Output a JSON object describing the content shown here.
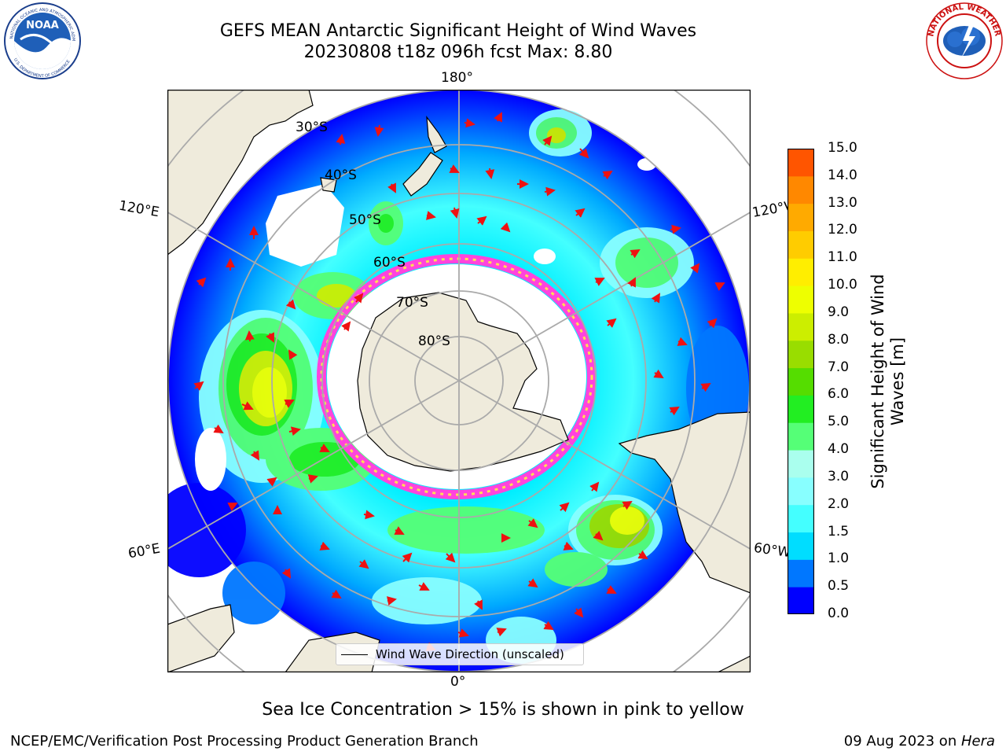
{
  "title": {
    "line1": "GEFS MEAN Antarctic Significant Height of Wind Waves",
    "line2": "20230808 t18z 096h fcst   Max: 8.80"
  },
  "logos": {
    "left": {
      "name": "NOAA",
      "ring_text": "NATIONAL OCEANIC AND ATMOSPHERIC ADMINISTRATION · U.S. DEPARTMENT OF COMMERCE"
    },
    "right": {
      "name": "NATIONAL WEATHER SERVICE"
    }
  },
  "map": {
    "projection": "south-polar-stereographic",
    "longitude_labels": {
      "top": "180°",
      "bottom": "0°",
      "left_upper": "120°E",
      "left_lower": "60°E",
      "right_upper": "120°W",
      "right_lower": "60°W"
    },
    "latitude_labels": [
      "30°S",
      "40°S",
      "50°S",
      "60°S",
      "70°S",
      "80°S"
    ],
    "legend_label": "Wind Wave Direction (unscaled)",
    "max_value": 8.8,
    "colors": {
      "land": "#efebdc",
      "ocean_low": "#0000ff",
      "arrow": "#ee1111",
      "ice_edge": "#ff44dd"
    }
  },
  "colorbar": {
    "label": "Significant Height of Wind Waves [m]",
    "ticks": [
      "15.0",
      "14.0",
      "13.0",
      "12.0",
      "11.0",
      "10.0",
      "9.0",
      "8.0",
      "7.0",
      "6.0",
      "5.0",
      "4.0",
      "3.0",
      "2.0",
      "1.5",
      "1.0",
      "0.5",
      "0.0"
    ],
    "colors": [
      "#0000ff",
      "#0077ff",
      "#00ddff",
      "#44ffff",
      "#88ffff",
      "#aaffee",
      "#55ff77",
      "#22ee22",
      "#55dd00",
      "#99dd00",
      "#ccee00",
      "#eeff00",
      "#ffee00",
      "#ffcc00",
      "#ffaa00",
      "#ff8800",
      "#ff5500",
      "#ff2200",
      "#ff0000"
    ]
  },
  "note": "Sea Ice Concentration > 15% is shown in pink to yellow",
  "footer": {
    "left": "NCEP/EMC/Verification Post Processing Product Generation Branch",
    "right_date": "09 Aug 2023 on ",
    "right_host": "Hera"
  }
}
